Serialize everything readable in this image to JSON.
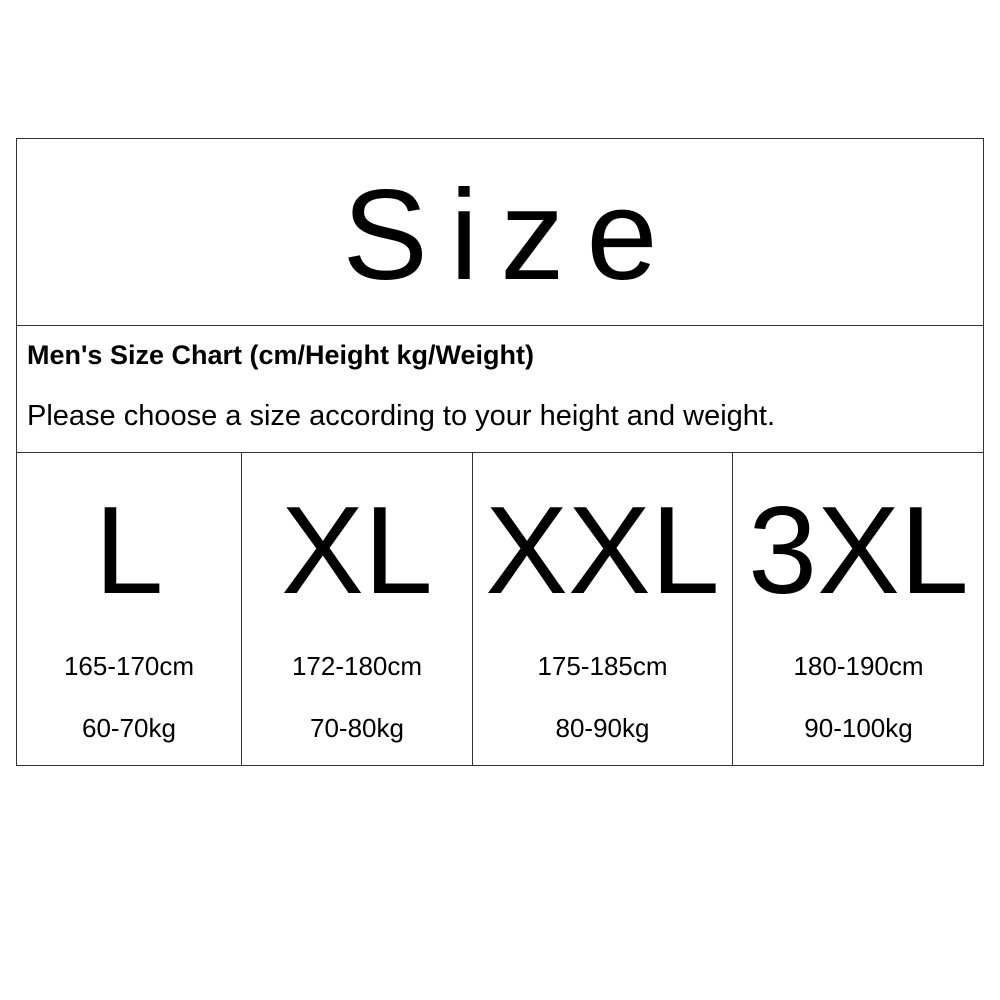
{
  "title": "Size",
  "header": {
    "heading": "Men's Size Chart (cm/Height kg/Weight)",
    "instruction": "Please choose a size according to your height and weight."
  },
  "sizes": [
    {
      "label": "L",
      "height": "165-170cm",
      "weight": "60-70kg"
    },
    {
      "label": "XL",
      "height": "172-180cm",
      "weight": "70-80kg"
    },
    {
      "label": "XXL",
      "height": "175-185cm",
      "weight": "80-90kg"
    },
    {
      "label": "3XL",
      "height": "180-190cm",
      "weight": "90-100kg"
    }
  ]
}
